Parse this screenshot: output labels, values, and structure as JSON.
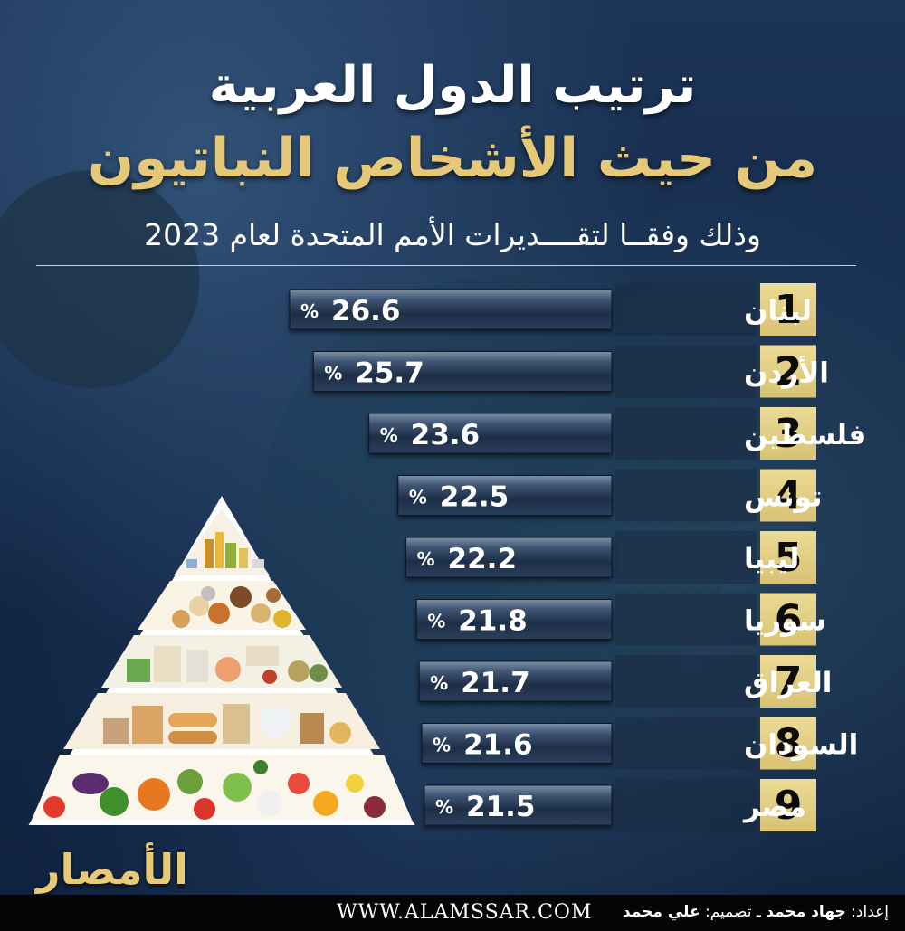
{
  "header": {
    "title_line1": "ترتيب الدول العربية",
    "title_line2": "من حيث الأشخاص النباتيون",
    "subtitle": "وذلك وفقــا لتقــــديرات الأمم المتحدة لعام 2023"
  },
  "colors": {
    "gold": "#e6c978",
    "rank_box": "#e3cf86",
    "bar_dark": "#1f3049",
    "bar_light": "#6a7d96",
    "text_white": "#ffffff"
  },
  "chart_data": {
    "type": "bar",
    "orientation": "horizontal",
    "unit": "%",
    "categories": [
      "لبنان",
      "الأردن",
      "فلسطين",
      "تونس",
      "ليبيا",
      "سوريا",
      "العراق",
      "السودان",
      "مصر"
    ],
    "ranks": [
      "1",
      "2",
      "3",
      "4",
      "5",
      "6",
      "7",
      "8",
      "9"
    ],
    "values": [
      26.6,
      25.7,
      23.6,
      22.5,
      22.2,
      21.8,
      21.7,
      21.6,
      21.5
    ],
    "value_labels": [
      "26.6",
      "25.7",
      "23.6",
      "22.5",
      "22.2",
      "21.8",
      "21.7",
      "21.6",
      "21.5"
    ],
    "title": "ترتيب الدول العربية",
    "xlabel": "",
    "ylabel": ""
  },
  "branding": {
    "logo_text": "الأمصار",
    "website": "WWW.ALAMSSAR.COM",
    "credit_prefix": "إعداد:",
    "author": "جهاد محمد",
    "separator": "ـ",
    "design_prefix": "تصميم:",
    "designer": "علي محمد"
  },
  "icons": {
    "pyramid": "food-pyramid-illustration",
    "logo": "alamssar-logo"
  }
}
